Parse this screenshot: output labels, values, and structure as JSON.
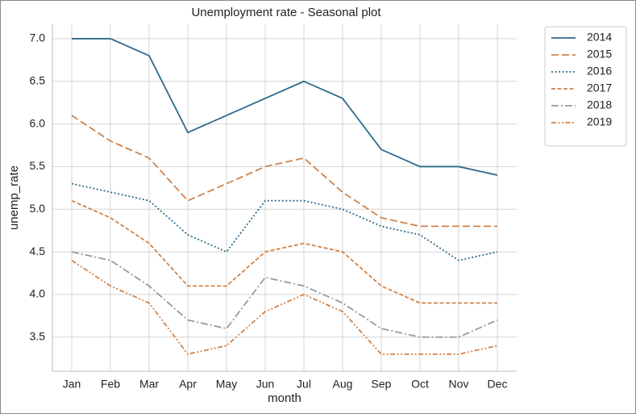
{
  "chart_data": {
    "type": "line",
    "title": "Unemployment rate - Seasonal plot",
    "x_label": "month",
    "y_label": "unemp_rate",
    "categories": [
      "Jan",
      "Feb",
      "Mar",
      "Apr",
      "May",
      "Jun",
      "Jul",
      "Aug",
      "Sep",
      "Oct",
      "Nov",
      "Dec"
    ],
    "series": [
      {
        "name": "2014",
        "color": "#2e6b8a",
        "style": "solid",
        "values": [
          7.0,
          7.0,
          6.8,
          5.9,
          6.1,
          6.3,
          6.5,
          6.3,
          5.7,
          5.5,
          5.5,
          5.4
        ]
      },
      {
        "name": "2015",
        "color": "#d0834a",
        "style": "dashed",
        "values": [
          6.1,
          5.8,
          5.6,
          5.1,
          5.3,
          5.5,
          5.6,
          5.2,
          4.9,
          4.8,
          4.8,
          4.8
        ]
      },
      {
        "name": "2016",
        "color": "#2e6b8a",
        "style": "dotted",
        "values": [
          5.3,
          5.2,
          5.1,
          4.7,
          4.5,
          5.1,
          5.1,
          5.0,
          4.8,
          4.7,
          4.4,
          4.5
        ]
      },
      {
        "name": "2017",
        "color": "#d0834a",
        "style": "short-dashed",
        "values": [
          5.1,
          4.9,
          4.6,
          4.1,
          4.1,
          4.5,
          4.6,
          4.5,
          4.1,
          3.9,
          3.9,
          3.9
        ]
      },
      {
        "name": "2018",
        "color": "#9a9a9a",
        "style": "dash-dot",
        "values": [
          4.5,
          4.4,
          4.1,
          3.7,
          3.6,
          4.2,
          4.1,
          3.9,
          3.6,
          3.5,
          3.5,
          3.7
        ]
      },
      {
        "name": "2019",
        "color": "#d0834a",
        "style": "dash-dot-dot",
        "values": [
          4.4,
          4.1,
          3.9,
          3.3,
          3.4,
          3.8,
          4.0,
          3.8,
          3.3,
          3.3,
          3.3,
          3.4
        ]
      }
    ],
    "ylim": [
      3.1,
      7.17
    ],
    "yticks": [
      3.5,
      {
        "value": 4,
        "label": "4.0"
      },
      4.5,
      {
        "value": 5,
        "label": "5.0"
      },
      5.5,
      {
        "value": 6,
        "label": "6.0"
      },
      6.5,
      {
        "value": 7,
        "label": "7.0"
      }
    ],
    "grid": true,
    "legend": "outside-right"
  }
}
